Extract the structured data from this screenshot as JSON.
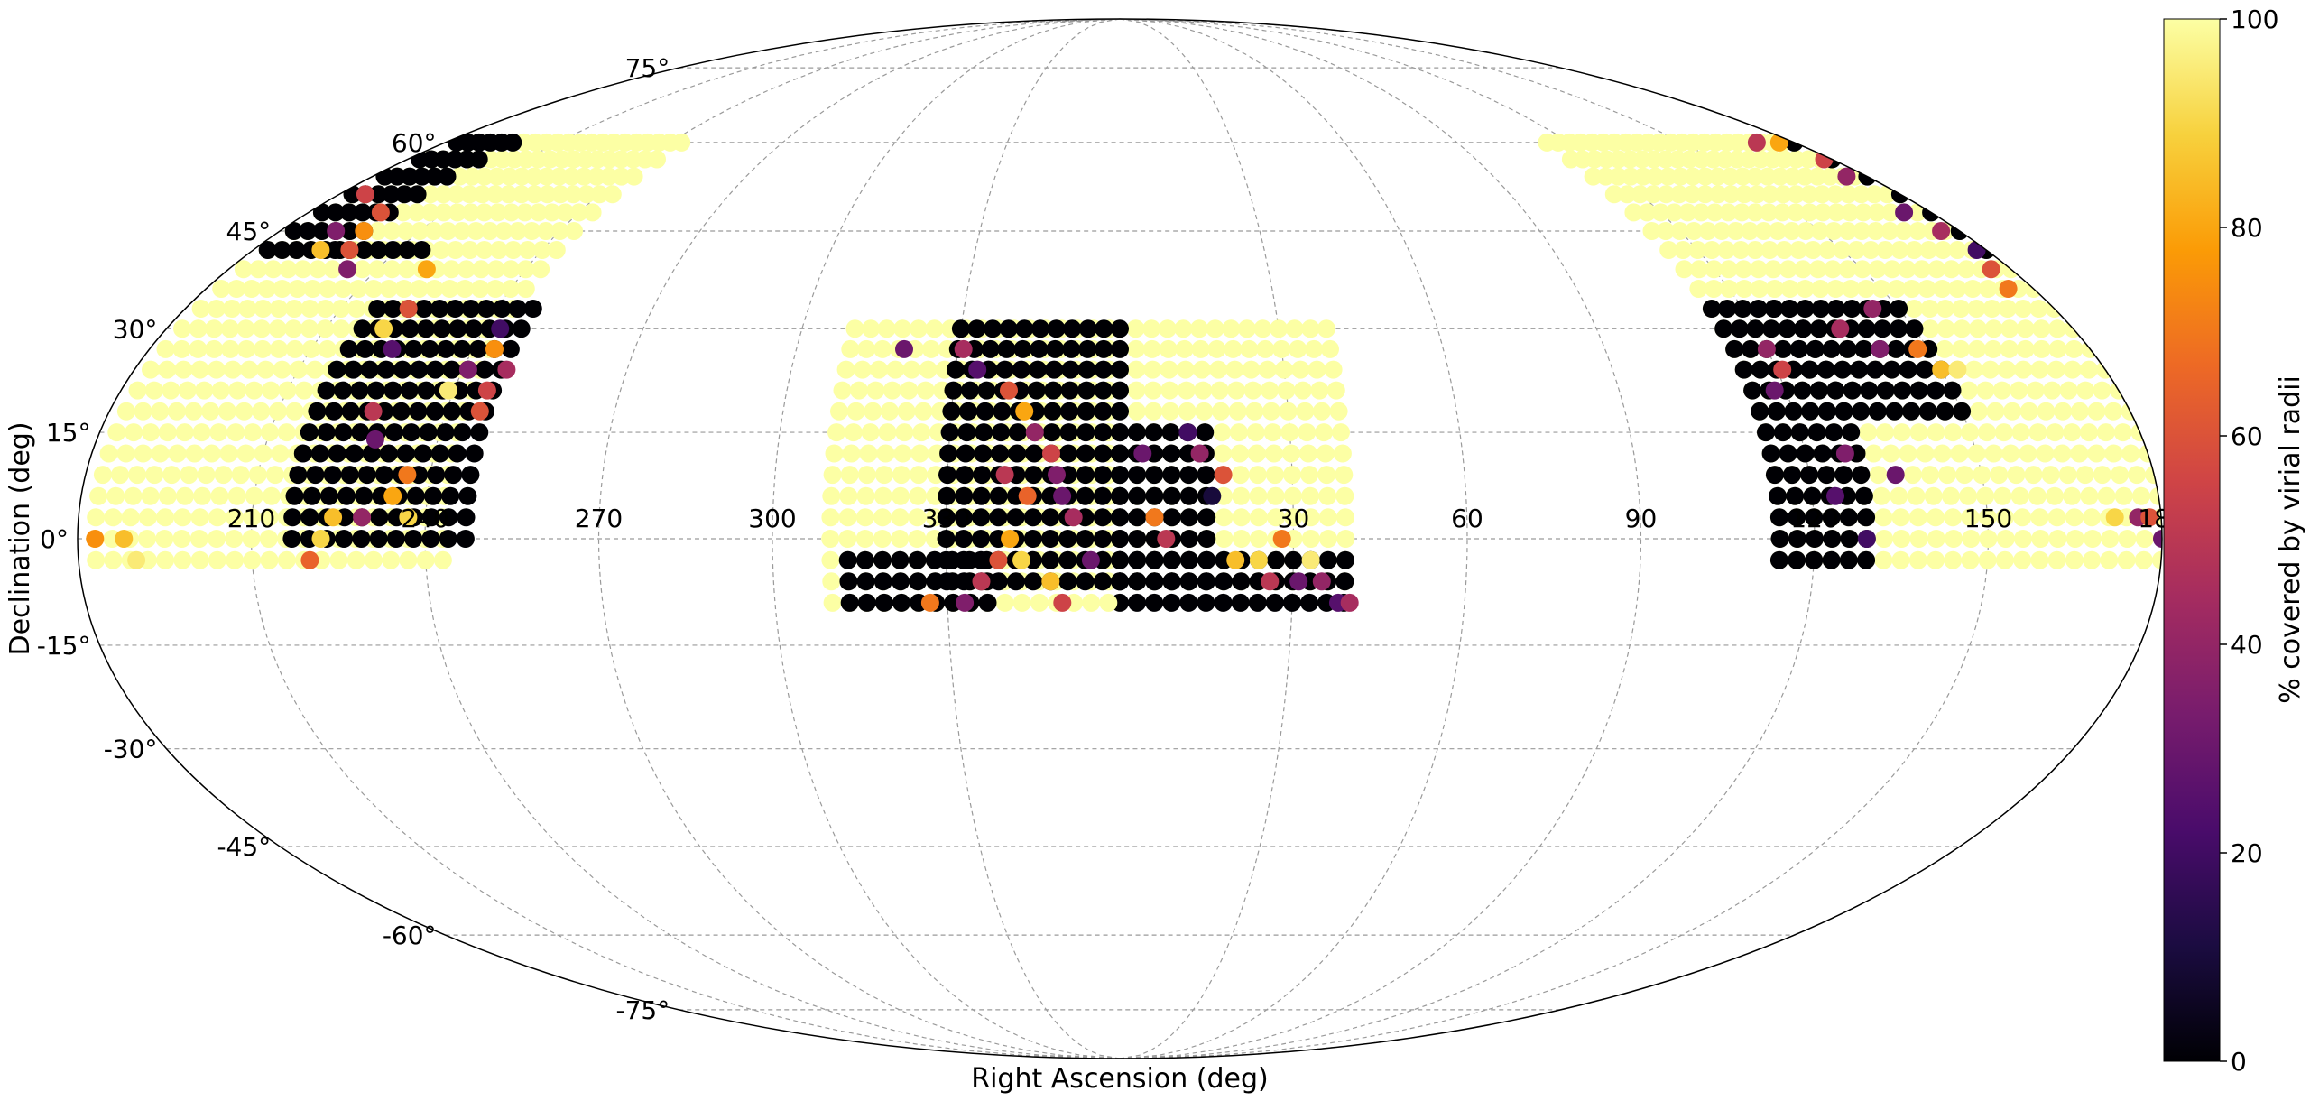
{
  "chart_data": {
    "type": "scatter",
    "projection": "mollweide",
    "xlabel": "Right Ascension (deg)",
    "ylabel": "Declination (deg)",
    "colorbar": {
      "label": "% covered by virial radii",
      "range": [
        0,
        100
      ],
      "ticks": [
        "0",
        "20",
        "40",
        "60",
        "80",
        "100"
      ],
      "colormap": [
        "#000004",
        "#1b0c41",
        "#4a0c6b",
        "#781c6d",
        "#a52c60",
        "#cf4446",
        "#ed6925",
        "#fb9b06",
        "#f7d13d",
        "#fcffa4"
      ]
    },
    "ra_ticks": [
      "30",
      "60",
      "90",
      "120",
      "150",
      "180",
      "210",
      "240",
      "270",
      "300",
      "330"
    ],
    "dec_ticks": [
      "75°",
      "60°",
      "45°",
      "30°",
      "15°",
      "0°",
      "-15°",
      "-30°",
      "-45°",
      "-60°",
      "-75°"
    ],
    "grid": true,
    "regions": [
      {
        "ra": [
          3,
          41
        ],
        "dec": [
          -6,
          30
        ],
        "value": 100
      },
      {
        "ra": [
          0,
          40
        ],
        "dec": [
          -9,
          -3
        ],
        "value": 0
      },
      {
        "ra": [
          0,
          15
        ],
        "dec": [
          -6,
          17
        ],
        "value": 0
      },
      {
        "ra": [
          114,
          245
        ],
        "dec": [
          -3,
          60
        ],
        "value": 100
      },
      {
        "ra": [
          114,
          130
        ],
        "dec": [
          -3,
          33
        ],
        "value": 0
      },
      {
        "ra": [
          126,
          150
        ],
        "dec": [
          18,
          33
        ],
        "value": 0
      },
      {
        "ra": [
          180,
          200
        ],
        "dec": [
          42,
          62
        ],
        "value": 0
      },
      {
        "ra": [
          197,
          216
        ],
        "dec": [
          42,
          42
        ],
        "value": 0
      },
      {
        "ra": [
          217,
          247
        ],
        "dec": [
          0,
          33
        ],
        "value": 0
      },
      {
        "ra": [
          310,
          360
        ],
        "dec": [
          -9,
          30
        ],
        "value": 100
      },
      {
        "ra": [
          313,
          338
        ],
        "dec": [
          -9,
          -3
        ],
        "value": 0
      },
      {
        "ra": [
          330,
          360
        ],
        "dec": [
          -6,
          30
        ],
        "value": 0
      }
    ],
    "points": [
      [
        4,
        12,
        30
      ],
      [
        8,
        0,
        50
      ],
      [
        6,
        3,
        70
      ],
      [
        12,
        15,
        20
      ],
      [
        14,
        12,
        40
      ],
      [
        16,
        6,
        10
      ],
      [
        18,
        9,
        60
      ],
      [
        20,
        -3,
        85
      ],
      [
        24,
        -3,
        90
      ],
      [
        26,
        -6,
        50
      ],
      [
        28,
        0,
        70
      ],
      [
        31,
        -6,
        30
      ],
      [
        33,
        -3,
        95
      ],
      [
        35,
        -6,
        40
      ],
      [
        38,
        -9,
        25
      ],
      [
        40,
        -9,
        45
      ],
      [
        120,
        27,
        40
      ],
      [
        121,
        24,
        55
      ],
      [
        118,
        21,
        30
      ],
      [
        124,
        6,
        25
      ],
      [
        127,
        12,
        35
      ],
      [
        129,
        0,
        20
      ],
      [
        136,
        30,
        45
      ],
      [
        141,
        27,
        35
      ],
      [
        145,
        33,
        40
      ],
      [
        148,
        27,
        70
      ],
      [
        150,
        24,
        85
      ],
      [
        153,
        24,
        95
      ],
      [
        135,
        9,
        30
      ],
      [
        172,
        3,
        90
      ],
      [
        176,
        3,
        40
      ],
      [
        178,
        3,
        60
      ],
      [
        180,
        0,
        30
      ],
      [
        183,
        0,
        75
      ],
      [
        188,
        0,
        85
      ],
      [
        190,
        -3,
        95
      ],
      [
        170,
        60,
        50
      ],
      [
        176,
        60,
        80
      ],
      [
        178,
        57,
        55
      ],
      [
        175,
        54,
        40
      ],
      [
        174,
        48,
        30
      ],
      [
        176,
        45,
        45
      ],
      [
        178,
        42,
        20
      ],
      [
        176,
        39,
        60
      ],
      [
        175,
        36,
        70
      ],
      [
        186,
        51,
        55
      ],
      [
        192,
        45,
        35
      ],
      [
        196,
        48,
        60
      ],
      [
        198,
        45,
        75
      ],
      [
        194,
        42,
        85
      ],
      [
        200,
        42,
        60
      ],
      [
        204,
        39,
        35
      ],
      [
        220,
        39,
        80
      ],
      [
        221,
        30,
        90
      ],
      [
        223,
        33,
        60
      ],
      [
        225,
        27,
        25
      ],
      [
        227,
        18,
        50
      ],
      [
        229,
        14,
        30
      ],
      [
        224,
        3,
        85
      ],
      [
        222,
        0,
        90
      ],
      [
        220,
        -3,
        65
      ],
      [
        229,
        3,
        40
      ],
      [
        234,
        6,
        80
      ],
      [
        236,
        9,
        70
      ],
      [
        237,
        3,
        90
      ],
      [
        239,
        21,
        95
      ],
      [
        241,
        24,
        35
      ],
      [
        244,
        27,
        75
      ],
      [
        246,
        21,
        55
      ],
      [
        248,
        24,
        45
      ],
      [
        243,
        30,
        20
      ],
      [
        246,
        18,
        60
      ],
      [
        320,
        27,
        30
      ],
      [
        331,
        27,
        45
      ],
      [
        334,
        24,
        25
      ],
      [
        340,
        21,
        60
      ],
      [
        343,
        18,
        80
      ],
      [
        345,
        15,
        40
      ],
      [
        348,
        12,
        55
      ],
      [
        349,
        9,
        35
      ],
      [
        340,
        9,
        50
      ],
      [
        344,
        6,
        65
      ],
      [
        350,
        6,
        30
      ],
      [
        352,
        3,
        45
      ],
      [
        339,
        -3,
        60
      ],
      [
        341,
        0,
        80
      ],
      [
        343,
        -3,
        90
      ],
      [
        348,
        -6,
        85
      ],
      [
        350,
        -9,
        55
      ],
      [
        355,
        -3,
        30
      ],
      [
        327,
        -9,
        70
      ],
      [
        333,
        -9,
        35
      ],
      [
        336,
        -6,
        50
      ]
    ]
  }
}
